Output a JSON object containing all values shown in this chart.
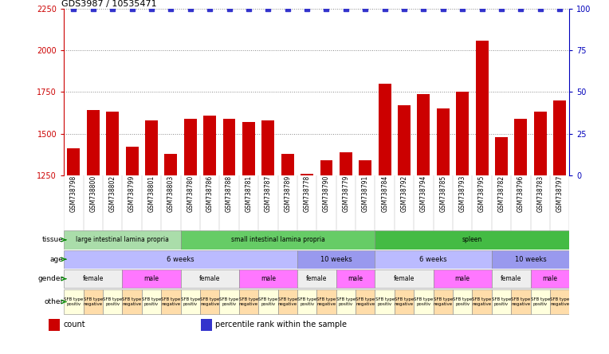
{
  "title": "GDS3987 / 10535471",
  "samples": [
    "GSM738798",
    "GSM738800",
    "GSM738802",
    "GSM738799",
    "GSM738801",
    "GSM738803",
    "GSM738780",
    "GSM738786",
    "GSM738788",
    "GSM738781",
    "GSM738787",
    "GSM738789",
    "GSM738778",
    "GSM738790",
    "GSM738779",
    "GSM738791",
    "GSM738784",
    "GSM738792",
    "GSM738794",
    "GSM738785",
    "GSM738793",
    "GSM738795",
    "GSM738782",
    "GSM738796",
    "GSM738783",
    "GSM738797"
  ],
  "counts": [
    1410,
    1640,
    1630,
    1420,
    1580,
    1380,
    1590,
    1610,
    1590,
    1570,
    1580,
    1380,
    1260,
    1340,
    1390,
    1340,
    1800,
    1670,
    1740,
    1650,
    1750,
    2060,
    1480,
    1590,
    1630,
    1700
  ],
  "ylim_left": [
    1250,
    2250
  ],
  "ylim_right": [
    0,
    100
  ],
  "yticks_left": [
    1250,
    1500,
    1750,
    2000,
    2250
  ],
  "yticks_right": [
    0,
    25,
    50,
    75,
    100
  ],
  "bar_color": "#cc0000",
  "dot_color": "#3333cc",
  "bg_color": "#f0f0f0",
  "tissue_data": [
    {
      "label": "large intestinal lamina propria",
      "start": 0,
      "end": 6,
      "color": "#aaddaa"
    },
    {
      "label": "small intestinal lamina propria",
      "start": 6,
      "end": 16,
      "color": "#66cc66"
    },
    {
      "label": "spleen",
      "start": 16,
      "end": 26,
      "color": "#44bb44"
    }
  ],
  "age_data": [
    {
      "label": "6 weeks",
      "start": 0,
      "end": 12,
      "color": "#bbbbff"
    },
    {
      "label": "10 weeks",
      "start": 12,
      "end": 16,
      "color": "#9999ee"
    },
    {
      "label": "6 weeks",
      "start": 16,
      "end": 22,
      "color": "#bbbbff"
    },
    {
      "label": "10 weeks",
      "start": 22,
      "end": 26,
      "color": "#9999ee"
    }
  ],
  "gender_data": [
    {
      "label": "female",
      "start": 0,
      "end": 3,
      "color": "#eeeeee"
    },
    {
      "label": "male",
      "start": 3,
      "end": 6,
      "color": "#ff77ff"
    },
    {
      "label": "female",
      "start": 6,
      "end": 9,
      "color": "#eeeeee"
    },
    {
      "label": "male",
      "start": 9,
      "end": 12,
      "color": "#ff77ff"
    },
    {
      "label": "female",
      "start": 12,
      "end": 14,
      "color": "#eeeeee"
    },
    {
      "label": "male",
      "start": 14,
      "end": 16,
      "color": "#ff77ff"
    },
    {
      "label": "female",
      "start": 16,
      "end": 19,
      "color": "#eeeeee"
    },
    {
      "label": "male",
      "start": 19,
      "end": 22,
      "color": "#ff77ff"
    },
    {
      "label": "female",
      "start": 22,
      "end": 24,
      "color": "#eeeeee"
    },
    {
      "label": "male",
      "start": 24,
      "end": 26,
      "color": "#ff77ff"
    }
  ],
  "other_data": [
    {
      "label": "SFB type\npositiv",
      "start": 0,
      "end": 1,
      "color": "#ffffdd"
    },
    {
      "label": "SFB type\nnegative",
      "start": 1,
      "end": 2,
      "color": "#ffddaa"
    },
    {
      "label": "SFB type\npositiv",
      "start": 2,
      "end": 3,
      "color": "#ffffdd"
    },
    {
      "label": "SFB type\nnegative",
      "start": 3,
      "end": 4,
      "color": "#ffddaa"
    },
    {
      "label": "SFB type\npositiv",
      "start": 4,
      "end": 5,
      "color": "#ffffdd"
    },
    {
      "label": "SFB type\nnegative",
      "start": 5,
      "end": 6,
      "color": "#ffddaa"
    },
    {
      "label": "SFB type\npositiv",
      "start": 6,
      "end": 7,
      "color": "#ffffdd"
    },
    {
      "label": "SFB type\nnegative",
      "start": 7,
      "end": 8,
      "color": "#ffddaa"
    },
    {
      "label": "SFB type\npositiv",
      "start": 8,
      "end": 9,
      "color": "#ffffdd"
    },
    {
      "label": "SFB type\nnegative",
      "start": 9,
      "end": 10,
      "color": "#ffddaa"
    },
    {
      "label": "SFB type\npositiv",
      "start": 10,
      "end": 11,
      "color": "#ffffdd"
    },
    {
      "label": "SFB type\nnegative",
      "start": 11,
      "end": 12,
      "color": "#ffddaa"
    },
    {
      "label": "SFB type\npositiv",
      "start": 12,
      "end": 13,
      "color": "#ffffdd"
    },
    {
      "label": "SFB type\nnegative",
      "start": 13,
      "end": 14,
      "color": "#ffddaa"
    },
    {
      "label": "SFB type\npositiv",
      "start": 14,
      "end": 15,
      "color": "#ffffdd"
    },
    {
      "label": "SFB type\nnegative",
      "start": 15,
      "end": 16,
      "color": "#ffddaa"
    },
    {
      "label": "SFB type\npositiv",
      "start": 16,
      "end": 17,
      "color": "#ffffdd"
    },
    {
      "label": "SFB type\nnegative",
      "start": 17,
      "end": 18,
      "color": "#ffddaa"
    },
    {
      "label": "SFB type\npositiv",
      "start": 18,
      "end": 19,
      "color": "#ffffdd"
    },
    {
      "label": "SFB type\nnegative",
      "start": 19,
      "end": 20,
      "color": "#ffddaa"
    },
    {
      "label": "SFB type\npositiv",
      "start": 20,
      "end": 21,
      "color": "#ffffdd"
    },
    {
      "label": "SFB type\nnegative",
      "start": 21,
      "end": 22,
      "color": "#ffddaa"
    },
    {
      "label": "SFB type\npositiv",
      "start": 22,
      "end": 23,
      "color": "#ffffdd"
    },
    {
      "label": "SFB type\nnegative",
      "start": 23,
      "end": 24,
      "color": "#ffddaa"
    },
    {
      "label": "SFB type\npositiv",
      "start": 24,
      "end": 25,
      "color": "#ffffdd"
    },
    {
      "label": "SFB type\nnegative",
      "start": 25,
      "end": 26,
      "color": "#ffddaa"
    }
  ],
  "row_labels": [
    "tissue",
    "age",
    "gender",
    "other"
  ],
  "legend_items": [
    {
      "label": "count",
      "color": "#cc0000",
      "marker": "s"
    },
    {
      "label": "percentile rank within the sample",
      "color": "#3333cc",
      "marker": "s"
    }
  ]
}
